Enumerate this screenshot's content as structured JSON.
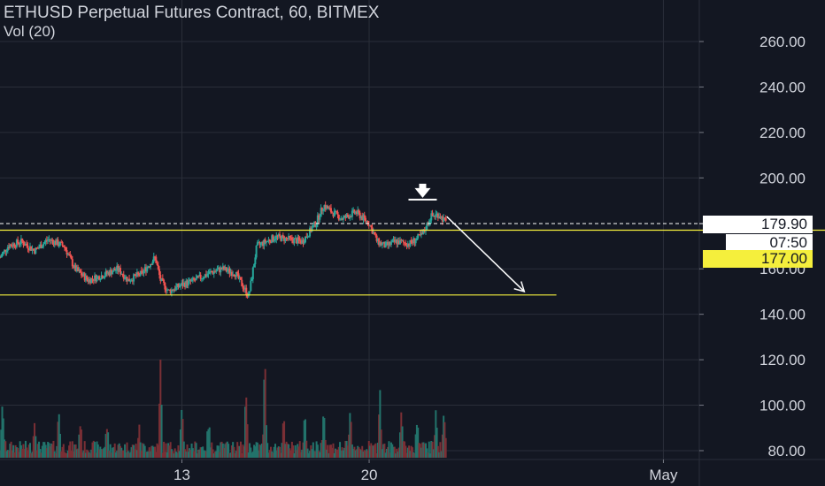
{
  "header": {
    "title": "ETHUSD Perpetual Futures Contract, 60, BITMEX",
    "indicator": "Vol (20)"
  },
  "chart_data": {
    "type": "candlestick",
    "symbol": "ETHUSD",
    "interval": "60",
    "exchange": "BITMEX",
    "price_axis": {
      "ticks": [
        "260.00",
        "240.00",
        "220.00",
        "200.00",
        "160.00",
        "140.00",
        "120.00",
        "100.00",
        "80.00"
      ],
      "range": [
        78,
        268
      ]
    },
    "time_axis": {
      "ticks": [
        "13",
        "20",
        "May"
      ],
      "ticks_day": [
        13,
        20,
        31
      ],
      "range": [
        6.2,
        33.5
      ]
    },
    "last_price": "179.90",
    "countdown": "07:50",
    "level_label": "177.00",
    "last_price_value": 179.9,
    "horizontal_levels": [
      {
        "value": 177.0,
        "color": "#f5ef3c",
        "full_width": true
      },
      {
        "value": 148.5,
        "color": "#f5ef3c",
        "full_width": false,
        "to_day": 27.0
      }
    ],
    "arrow": {
      "from": {
        "day": 22.9,
        "price": 183
      },
      "to": {
        "day": 25.8,
        "price": 150
      },
      "color": "#ffffff"
    },
    "marker": {
      "day": 22.0,
      "price": 192,
      "shape": "down-arrow",
      "color": "#ffffff"
    },
    "price_path": [
      [
        6.2,
        165
      ],
      [
        6.5,
        170
      ],
      [
        7.0,
        172
      ],
      [
        7.5,
        168
      ],
      [
        8.0,
        173
      ],
      [
        8.6,
        170
      ],
      [
        9.0,
        160
      ],
      [
        9.5,
        155
      ],
      [
        10.0,
        157
      ],
      [
        10.6,
        160
      ],
      [
        11.0,
        155
      ],
      [
        11.5,
        158
      ],
      [
        12.0,
        165
      ],
      [
        12.2,
        155
      ],
      [
        12.5,
        150
      ],
      [
        13.0,
        153
      ],
      [
        13.5,
        155
      ],
      [
        14.0,
        158
      ],
      [
        14.5,
        160
      ],
      [
        15.0,
        158
      ],
      [
        15.3,
        152
      ],
      [
        15.5,
        148
      ],
      [
        15.8,
        170
      ],
      [
        16.5,
        174
      ],
      [
        17.0,
        173
      ],
      [
        17.5,
        172
      ],
      [
        18.0,
        180
      ],
      [
        18.3,
        188
      ],
      [
        18.6,
        185
      ],
      [
        19.0,
        182
      ],
      [
        19.5,
        185
      ],
      [
        20.0,
        180
      ],
      [
        20.3,
        172
      ],
      [
        20.6,
        170
      ],
      [
        21.0,
        172
      ],
      [
        21.5,
        171
      ],
      [
        22.0,
        175
      ],
      [
        22.3,
        183
      ],
      [
        22.6,
        184
      ],
      [
        22.9,
        179.9
      ]
    ],
    "volume_axis": {
      "range": [
        0,
        50
      ]
    },
    "volume_spikes": [
      [
        6.3,
        22
      ],
      [
        7.5,
        14
      ],
      [
        8.4,
        18
      ],
      [
        9.2,
        12
      ],
      [
        10.2,
        10
      ],
      [
        11.4,
        9
      ],
      [
        12.2,
        40
      ],
      [
        13.0,
        18
      ],
      [
        14.0,
        12
      ],
      [
        15.4,
        28
      ],
      [
        16.1,
        44
      ],
      [
        16.8,
        14
      ],
      [
        17.6,
        16
      ],
      [
        18.3,
        22
      ],
      [
        19.3,
        18
      ],
      [
        20.4,
        30
      ],
      [
        21.2,
        17
      ],
      [
        21.8,
        14
      ],
      [
        22.5,
        20
      ],
      [
        22.8,
        19
      ]
    ],
    "colors": {
      "up": "#26a69a",
      "down": "#ef5350",
      "volume_up": "#22736b",
      "volume_down": "#7a2f35",
      "grid": "#2a2e39",
      "axis_text": "#d1d4dc"
    },
    "grid": true
  }
}
